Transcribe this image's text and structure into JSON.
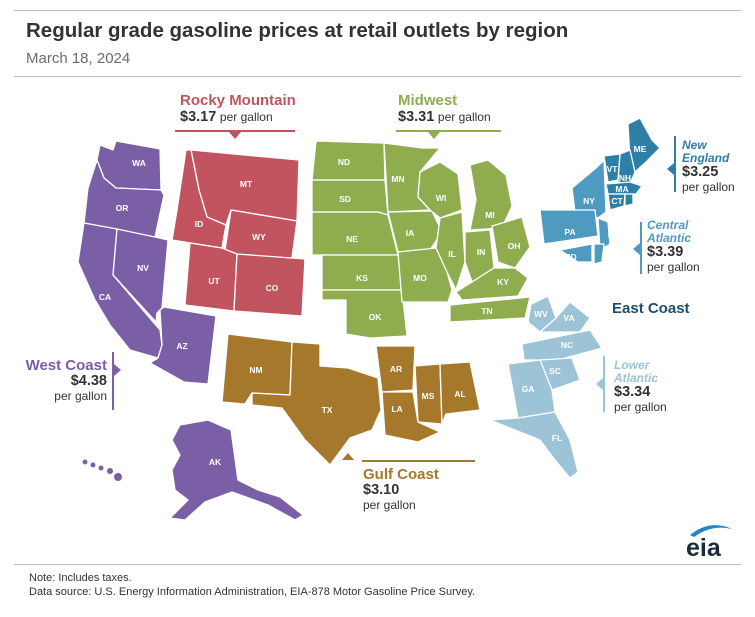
{
  "title": "Regular grade gasoline prices at retail outlets by region",
  "date": "March 18, 2024",
  "colors": {
    "west_coast": "#7a5ea6",
    "rocky_mountain": "#c1545f",
    "midwest": "#8fad4f",
    "gulf_coast": "#a6782c",
    "new_england": "#2e7fa8",
    "central_atlantic": "#4e9ac0",
    "lower_atlantic": "#9cc3d6",
    "east_coast_label": "#1b4f6d"
  },
  "regions": {
    "rocky_mountain": {
      "name": "Rocky Mountain",
      "price": "$3.17",
      "unit": "per gallon"
    },
    "midwest": {
      "name": "Midwest",
      "price": "$3.31",
      "unit": "per gallon"
    },
    "new_england": {
      "name_line1": "New",
      "name_line2": "England",
      "price": "$3.25",
      "unit": "per gallon"
    },
    "central_atlantic": {
      "name_line1": "Central",
      "name_line2": "Atlantic",
      "price": "$3.39",
      "unit": "per gallon"
    },
    "east_coast": {
      "name": "East Coast"
    },
    "west_coast": {
      "name": "West Coast",
      "price": "$4.38",
      "unit": "per gallon"
    },
    "lower_atlantic": {
      "name_line1": "Lower",
      "name_line2": "Atlantic",
      "price": "$3.34",
      "unit": "per gallon"
    },
    "gulf_coast": {
      "name": "Gulf Coast",
      "price": "$3.10",
      "unit": "per gallon"
    }
  },
  "states": {
    "wa": "WA",
    "or": "OR",
    "ca": "CA",
    "nv": "NV",
    "az": "AZ",
    "ak": "AK",
    "hi": "HI",
    "mt": "MT",
    "id": "ID",
    "wy": "WY",
    "ut": "UT",
    "co": "CO",
    "nd": "ND",
    "sd": "SD",
    "ne": "NE",
    "ks": "KS",
    "ok": "OK",
    "mn": "MN",
    "ia": "IA",
    "mo": "MO",
    "wi": "WI",
    "il": "IL",
    "mi": "MI",
    "in": "IN",
    "oh": "OH",
    "ky": "KY",
    "tn": "TN",
    "nm": "NM",
    "tx": "TX",
    "ar": "AR",
    "la": "LA",
    "ms": "MS",
    "al": "AL",
    "me": "ME",
    "vt": "VT",
    "nh": "NH",
    "ma": "MA",
    "ct": "CT",
    "ri": "RI",
    "ny": "NY",
    "pa": "PA",
    "nj": "NJ",
    "md": "MD",
    "de": "DE",
    "wv": "WV",
    "va": "VA",
    "nc": "NC",
    "sc": "SC",
    "ga": "GA",
    "fl": "FL"
  },
  "note": "Note:  Includes taxes.",
  "source": "Data source:  U.S. Energy Information Administration, EIA-878 Motor Gasoline Price Survey.",
  "logo_text": "eia"
}
